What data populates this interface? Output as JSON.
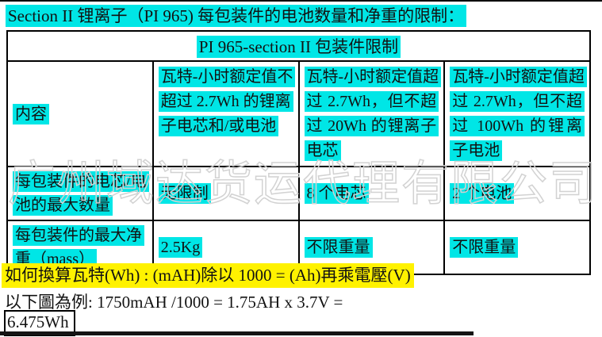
{
  "page": {
    "title": "Section II  锂离子（PI 965)  每包装件的电池数量和净重的限制："
  },
  "table": {
    "merged_header": "PI 965-section II  包装件限制",
    "columns": [
      "内容",
      "瓦特-小时额定值不超过 2.7Wh 的锂离子电芯和/或电池",
      "瓦特-小时额定值超过 2.7Wh，但不超过 20Wh 的锂离子电芯",
      "瓦特-小时额定值超过 2.7Wh，但不超过 100Wh 的锂离子电池"
    ],
    "rows": [
      {
        "label": "每包装件的电芯/电池的最大数量",
        "values": [
          "无限制",
          "8 个电芯",
          "2 个电池"
        ]
      },
      {
        "label": "每包装件的最大净重（mass）",
        "values": [
          "2.5Kg",
          "不限重量",
          "不限重量"
        ]
      }
    ]
  },
  "footer": {
    "formula_line": "如何換算瓦特(Wh) : (mAH)除以 1000 = (Ah)再乘電壓(V)",
    "example_line": "以下圖為例: 1750mAH /1000 = 1.75AH x 3.7V =",
    "result_box": "6.475Wh"
  },
  "watermark": "广州域达货运代理有限公司",
  "colors": {
    "highlight_cyan": "#00e6e6",
    "highlight_yellow": "#fff200",
    "text": "#121212",
    "watermark_gray": "#d2d2d2"
  }
}
